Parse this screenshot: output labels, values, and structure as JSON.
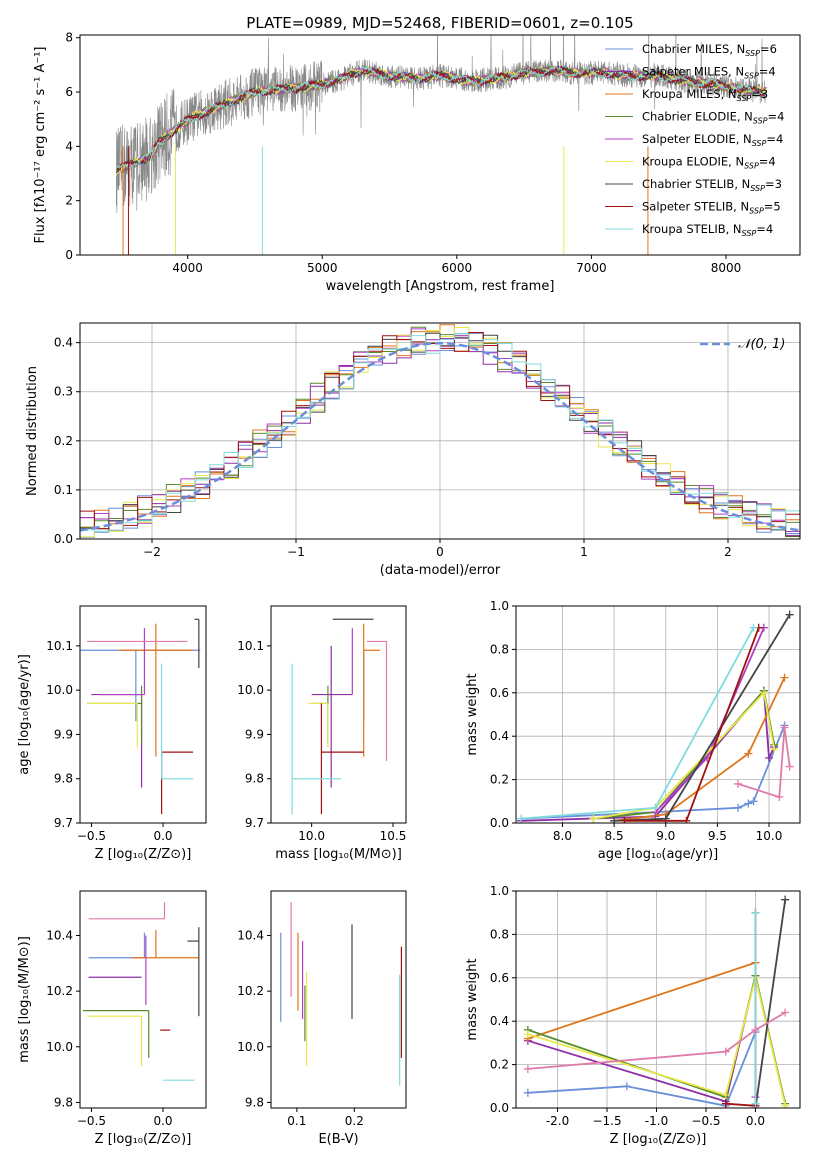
{
  "figure": {
    "title": "PLATE=0989, MJD=52468, FIBERID=0601, z=0.105"
  },
  "colors": [
    "#6a8fdb",
    "#8e2ea6",
    "#e0761c",
    "#5a8a2e",
    "#b23fc4",
    "#e8e84a",
    "#444444",
    "#a01010",
    "#80dcdc",
    "#888888",
    "#e07aa8"
  ],
  "models": [
    {
      "name": "Chabrier MILES, N",
      "sub": "SSP",
      "suffix": "=6",
      "color": "#6a8fdb"
    },
    {
      "name": "Salpeter MILES, N",
      "sub": "SSP",
      "suffix": "=4",
      "color": "#8e2ea6"
    },
    {
      "name": "Kroupa MILES, N",
      "sub": "SSP",
      "suffix": "=3",
      "color": "#e0761c"
    },
    {
      "name": "Chabrier ELODIE, N",
      "sub": "SSP",
      "suffix": "=4",
      "color": "#5a8a2e"
    },
    {
      "name": "Salpeter ELODIE, N",
      "sub": "SSP",
      "suffix": "=4",
      "color": "#b23fc4"
    },
    {
      "name": "Kroupa ELODIE, N",
      "sub": "SSP",
      "suffix": "=4",
      "color": "#e8e84a"
    },
    {
      "name": "Chabrier STELIB, N",
      "sub": "SSP",
      "suffix": "=3",
      "color": "#444444"
    },
    {
      "name": "Salpeter STELIB, N",
      "sub": "SSP",
      "suffix": "=5",
      "color": "#a01010"
    },
    {
      "name": "Kroupa STELIB, N",
      "sub": "SSP",
      "suffix": "=4",
      "color": "#80dcdc"
    }
  ],
  "chart_data": [
    {
      "id": "spectrum",
      "type": "line",
      "xlabel": "wavelength [Angstrom, rest frame]",
      "ylabel": "Flux [fλ10⁻¹⁷ erg cm⁻² s⁻¹ A⁻¹]",
      "xlim": [
        3200,
        8550
      ],
      "ylim": [
        0,
        8.1
      ],
      "xticks": [
        4000,
        5000,
        6000,
        7000,
        8000
      ],
      "yticks": [
        0,
        2,
        4,
        6,
        8
      ],
      "grid": false,
      "legend": "upper-right",
      "data_series": {
        "name": "data",
        "color": "#888888"
      },
      "continuum": {
        "x": [
          3470,
          3550,
          3650,
          3720,
          3780,
          3850,
          3950,
          4050,
          4150,
          4300,
          4500,
          4700,
          4900,
          5100,
          5300,
          5500,
          5700,
          5900,
          6100,
          6300,
          6500,
          6700,
          6900,
          7100,
          7300,
          7500,
          7700,
          7900,
          8100,
          8300
        ],
        "y": [
          3.1,
          3.3,
          3.5,
          3.6,
          4.1,
          4.4,
          4.8,
          5.1,
          5.3,
          5.6,
          6.0,
          6.1,
          6.2,
          6.4,
          6.8,
          6.6,
          6.5,
          6.6,
          6.4,
          6.5,
          6.7,
          6.8,
          6.7,
          6.7,
          6.6,
          6.6,
          6.4,
          6.3,
          6.1,
          6.0
        ]
      }
    },
    {
      "id": "residuals",
      "type": "histogram",
      "xlabel": "(data-model)/error",
      "ylabel": "Normed distribution",
      "xlim": [
        -2.5,
        2.5
      ],
      "ylim": [
        0,
        0.44
      ],
      "xticks": [
        -2,
        -1,
        0,
        1,
        2
      ],
      "yticks": [
        0.0,
        0.1,
        0.2,
        0.3,
        0.4
      ],
      "grid": true,
      "legend": "upper-right",
      "reference": {
        "label": "𝒩(0, 1)",
        "color": "#6a8fdb"
      }
    },
    {
      "id": "age-vs-Z",
      "type": "errorbar",
      "xlabel": "Z [log₁₀(Z/Z⊙)]",
      "ylabel": "age  [log₁₀(age/yr)]",
      "xlim": [
        -0.58,
        0.3
      ],
      "ylim": [
        9.7,
        10.19
      ],
      "xticks": [
        -0.5,
        0.0
      ],
      "yticks": [
        9.7,
        9.8,
        9.9,
        10.0,
        10.1
      ],
      "series": [
        {
          "color": "#6a8fdb",
          "x": -0.19,
          "xerr": [
            0.45,
            0.45
          ],
          "y": 10.09,
          "yerr": [
            0.16,
            0.0
          ]
        },
        {
          "color": "#8e2ea6",
          "x": -0.15,
          "xerr": [
            0.35,
            0.0
          ],
          "y": 9.99,
          "yerr": [
            0.21,
            0.0
          ]
        },
        {
          "color": "#e0761c",
          "x": -0.05,
          "xerr": [
            0.26,
            0.26
          ],
          "y": 10.09,
          "yerr": [
            0.24,
            0.06
          ]
        },
        {
          "color": "#5a8a2e",
          "x": -0.15,
          "xerr": [
            0.38,
            0.0
          ],
          "y": 9.97,
          "yerr": [
            0.09,
            0.04
          ]
        },
        {
          "color": "#b23fc4",
          "x": -0.13,
          "xerr": [
            0.32,
            0.0
          ],
          "y": 9.99,
          "yerr": [
            0.0,
            0.15
          ]
        },
        {
          "color": "#e8e84a",
          "x": -0.18,
          "xerr": [
            0.35,
            0.0
          ],
          "y": 9.97,
          "yerr": [
            0.1,
            0.0
          ]
        },
        {
          "color": "#444444",
          "x": 0.25,
          "xerr": [
            0.03,
            0.0
          ],
          "y": 10.16,
          "yerr": [
            0.11,
            0.0
          ]
        },
        {
          "color": "#a01010",
          "x": -0.01,
          "xerr": [
            0.0,
            0.22
          ],
          "y": 9.86,
          "yerr": [
            0.14,
            0.0
          ]
        },
        {
          "color": "#80dcdc",
          "x": -0.01,
          "xerr": [
            0.0,
            0.22
          ],
          "y": 9.8,
          "yerr": [
            0.0,
            0.26
          ]
        },
        {
          "color": "#e07aa8",
          "x": -0.05,
          "xerr": [
            0.48,
            0.22
          ],
          "y": 10.11,
          "yerr": [
            0.0,
            0.0
          ]
        }
      ]
    },
    {
      "id": "age-vs-mass",
      "type": "errorbar",
      "xlabel": "mass [log₁₀(M/M⊙)]",
      "ylabel": "",
      "xlim": [
        9.75,
        10.58
      ],
      "ylim": [
        9.7,
        10.19
      ],
      "xticks": [
        10.0,
        10.5
      ],
      "yticks": [
        9.7,
        9.8,
        9.9,
        10.0,
        10.1
      ],
      "series": [
        {
          "color": "#6a8fdb",
          "x": 10.32,
          "xerr": [
            0.0,
            0.0
          ],
          "y": 10.09,
          "yerr": [
            0.16,
            0.0
          ]
        },
        {
          "color": "#8e2ea6",
          "x": 10.12,
          "xerr": [
            0.12,
            0.13
          ],
          "y": 9.99,
          "yerr": [
            0.21,
            0.11
          ]
        },
        {
          "color": "#e0761c",
          "x": 10.32,
          "xerr": [
            0.0,
            0.1
          ],
          "y": 10.09,
          "yerr": [
            0.24,
            0.06
          ]
        },
        {
          "color": "#5a8a2e",
          "x": 10.1,
          "xerr": [
            0.1,
            0.0
          ],
          "y": 9.97,
          "yerr": [
            0.09,
            0.04
          ]
        },
        {
          "color": "#b23fc4",
          "x": 10.25,
          "xerr": [
            0.0,
            0.0
          ],
          "y": 9.99,
          "yerr": [
            0.0,
            0.15
          ]
        },
        {
          "color": "#e8e84a",
          "x": 10.1,
          "xerr": [
            0.12,
            0.0
          ],
          "y": 9.97,
          "yerr": [
            0.1,
            0.0
          ]
        },
        {
          "color": "#444444",
          "x": 10.38,
          "xerr": [
            0.25,
            0.0
          ],
          "y": 10.16,
          "yerr": [
            0.0,
            0.0
          ]
        },
        {
          "color": "#a01010",
          "x": 10.06,
          "xerr": [
            0.0,
            0.26
          ],
          "y": 9.86,
          "yerr": [
            0.14,
            0.11
          ]
        },
        {
          "color": "#80dcdc",
          "x": 9.88,
          "xerr": [
            0.0,
            0.3
          ],
          "y": 9.8,
          "yerr": [
            0.08,
            0.26
          ]
        },
        {
          "color": "#e07aa8",
          "x": 10.46,
          "xerr": [
            0.12,
            0.0
          ],
          "y": 10.11,
          "yerr": [
            0.27,
            0.0
          ]
        }
      ]
    },
    {
      "id": "mass-weight-vs-age",
      "type": "line",
      "xlabel": "age  [log₁₀(age/yr)]",
      "ylabel": "mass weight",
      "xlim": [
        7.55,
        10.3
      ],
      "ylim": [
        0,
        1.0
      ],
      "xticks": [
        8.0,
        8.5,
        9.0,
        9.5,
        10.0
      ],
      "yticks": [
        0.0,
        0.2,
        0.4,
        0.6,
        0.8,
        1.0
      ],
      "grid": true,
      "series": [
        {
          "color": "#6a8fdb",
          "x": [
            7.6,
            8.9,
            9.7,
            9.8,
            9.85,
            10.15
          ],
          "y": [
            0.02,
            0.05,
            0.07,
            0.09,
            0.1,
            0.45
          ]
        },
        {
          "color": "#8e2ea6",
          "x": [
            7.6,
            8.9,
            9.95,
            10.0,
            10.05
          ],
          "y": [
            0.01,
            0.03,
            0.61,
            0.3,
            0.35
          ]
        },
        {
          "color": "#e0761c",
          "x": [
            8.5,
            9.0,
            9.8,
            10.15
          ],
          "y": [
            0.01,
            0.04,
            0.32,
            0.67
          ]
        },
        {
          "color": "#5a8a2e",
          "x": [
            8.3,
            8.9,
            9.95,
            10.05
          ],
          "y": [
            0.02,
            0.05,
            0.61,
            0.36
          ]
        },
        {
          "color": "#b23fc4",
          "x": [
            8.9,
            9.4,
            9.95
          ],
          "y": [
            0.05,
            0.3,
            0.9
          ]
        },
        {
          "color": "#e8e84a",
          "x": [
            8.3,
            8.9,
            9.95,
            10.05
          ],
          "y": [
            0.02,
            0.07,
            0.6,
            0.34
          ]
        },
        {
          "color": "#444444",
          "x": [
            8.5,
            9.0,
            10.2
          ],
          "y": [
            0.01,
            0.02,
            0.96
          ]
        },
        {
          "color": "#a01010",
          "x": [
            8.6,
            9.2,
            9.9
          ],
          "y": [
            0.01,
            0.01,
            0.9
          ]
        },
        {
          "color": "#80dcdc",
          "x": [
            7.6,
            8.9,
            9.85
          ],
          "y": [
            0.02,
            0.07,
            0.9
          ]
        },
        {
          "color": "#e07aa8",
          "x": [
            9.7,
            10.1,
            10.15,
            10.2
          ],
          "y": [
            0.18,
            0.12,
            0.44,
            0.26
          ]
        }
      ]
    },
    {
      "id": "mass-vs-Z",
      "type": "errorbar",
      "xlabel": "Z [log₁₀(Z/Z⊙)]",
      "ylabel": "mass [log₁₀(M/M⊙)]",
      "xlim": [
        -0.58,
        0.3
      ],
      "ylim": [
        9.78,
        10.56
      ],
      "xticks": [
        -0.5,
        0.0
      ],
      "yticks": [
        9.8,
        10.0,
        10.2,
        10.4
      ],
      "series": [
        {
          "color": "#6a8fdb",
          "x": -0.13,
          "xerr": [
            0.39,
            0.0
          ],
          "y": 10.32,
          "yerr": [
            0.0,
            0.09
          ]
        },
        {
          "color": "#8e2ea6",
          "x": -0.15,
          "xerr": [
            0.37,
            0.0
          ],
          "y": 10.25,
          "yerr": [
            0.0,
            0.0
          ]
        },
        {
          "color": "#e0761c",
          "x": -0.05,
          "xerr": [
            0.17,
            0.3
          ],
          "y": 10.32,
          "yerr": [
            0.0,
            0.1
          ]
        },
        {
          "color": "#5a8a2e",
          "x": -0.1,
          "xerr": [
            0.46,
            0.0
          ],
          "y": 10.13,
          "yerr": [
            0.17,
            0.0
          ]
        },
        {
          "color": "#b23fc4",
          "x": -0.12,
          "xerr": [
            0.0,
            0.0
          ],
          "y": 10.25,
          "yerr": [
            0.1,
            0.15
          ]
        },
        {
          "color": "#e8e84a",
          "x": -0.15,
          "xerr": [
            0.38,
            0.0
          ],
          "y": 10.11,
          "yerr": [
            0.18,
            0.0
          ]
        },
        {
          "color": "#444444",
          "x": 0.25,
          "xerr": [
            0.08,
            0.0
          ],
          "y": 10.38,
          "yerr": [
            0.27,
            0.05
          ]
        },
        {
          "color": "#a01010",
          "x": 0.05,
          "xerr": [
            0.07,
            0.0
          ],
          "y": 10.06,
          "yerr": [
            0.0,
            0.0
          ]
        },
        {
          "color": "#80dcdc",
          "x": 0.0,
          "xerr": [
            0.0,
            0.22
          ],
          "y": 9.88,
          "yerr": [
            0.0,
            0.0
          ]
        },
        {
          "color": "#e07aa8",
          "x": 0.01,
          "xerr": [
            0.53,
            0.0
          ],
          "y": 10.46,
          "yerr": [
            0.0,
            0.06
          ]
        }
      ]
    },
    {
      "id": "mass-vs-ebv",
      "type": "errorbar",
      "xlabel": "E(B-V)",
      "ylabel": "",
      "xlim": [
        0.055,
        0.29
      ],
      "ylim": [
        9.78,
        10.56
      ],
      "xticks": [
        0.1,
        0.2
      ],
      "yticks": [
        9.8,
        10.0,
        10.2,
        10.4
      ],
      "series": [
        {
          "color": "#6a8fdb",
          "x": 0.072,
          "y": 10.25,
          "yerr": [
            0.16,
            0.16
          ]
        },
        {
          "color": "#e07aa8",
          "x": 0.09,
          "y": 10.35,
          "yerr": [
            0.17,
            0.17
          ]
        },
        {
          "color": "#e0761c",
          "x": 0.102,
          "y": 10.27,
          "yerr": [
            0.14,
            0.14
          ]
        },
        {
          "color": "#b23fc4",
          "x": 0.11,
          "y": 10.24,
          "yerr": [
            0.14,
            0.14
          ]
        },
        {
          "color": "#5a8a2e",
          "x": 0.114,
          "y": 10.12,
          "yerr": [
            0.1,
            0.1
          ]
        },
        {
          "color": "#e8e84a",
          "x": 0.117,
          "y": 10.1,
          "yerr": [
            0.17,
            0.17
          ]
        },
        {
          "color": "#444444",
          "x": 0.196,
          "y": 10.27,
          "yerr": [
            0.17,
            0.17
          ]
        },
        {
          "color": "#a01010",
          "x": 0.282,
          "y": 10.16,
          "yerr": [
            0.2,
            0.2
          ]
        },
        {
          "color": "#80dcdc",
          "x": 0.279,
          "y": 10.06,
          "yerr": [
            0.2,
            0.2
          ]
        }
      ]
    },
    {
      "id": "mass-weight-vs-Z",
      "type": "line",
      "xlabel": "Z [log₁₀(Z/Z⊙)]",
      "ylabel": "mass weight",
      "xlim": [
        -2.42,
        0.45
      ],
      "ylim": [
        0,
        1.0
      ],
      "xticks": [
        -2.0,
        -1.5,
        -1.0,
        -0.5,
        0.0
      ],
      "yticks": [
        0.0,
        0.2,
        0.4,
        0.6,
        0.8,
        1.0
      ],
      "grid": true,
      "series": [
        {
          "color": "#6a8fdb",
          "x": [
            -2.3,
            -1.3,
            -0.3,
            0.0,
            0.0
          ],
          "y": [
            0.07,
            0.1,
            0.01,
            0.35,
            0.02
          ]
        },
        {
          "color": "#8e2ea6",
          "x": [
            -2.3,
            -0.3,
            0.0,
            0.0
          ],
          "y": [
            0.31,
            0.03,
            0.61,
            0.02
          ]
        },
        {
          "color": "#e0761c",
          "x": [
            -2.3,
            0.0
          ],
          "y": [
            0.32,
            0.67
          ]
        },
        {
          "color": "#5a8a2e",
          "x": [
            -2.3,
            -0.3,
            0.0,
            0.3
          ],
          "y": [
            0.36,
            0.05,
            0.61,
            0.02
          ]
        },
        {
          "color": "#b23fc4",
          "x": [
            0.0,
            0.0
          ],
          "y": [
            0.05,
            0.9
          ]
        },
        {
          "color": "#e8e84a",
          "x": [
            -2.3,
            -0.3,
            0.0,
            0.3
          ],
          "y": [
            0.34,
            0.06,
            0.6,
            0.01
          ]
        },
        {
          "color": "#444444",
          "x": [
            0.0,
            0.3
          ],
          "y": [
            0.0,
            0.96
          ]
        },
        {
          "color": "#a01010",
          "x": [
            -0.3,
            0.0,
            0.0
          ],
          "y": [
            0.02,
            0.01,
            0.9
          ]
        },
        {
          "color": "#80dcdc",
          "x": [
            0.0,
            0.0
          ],
          "y": [
            0.9,
            0.02
          ]
        },
        {
          "color": "#e07aa8",
          "x": [
            -2.3,
            -0.3,
            0.0,
            0.3
          ],
          "y": [
            0.18,
            0.26,
            0.36,
            0.44
          ]
        }
      ]
    }
  ]
}
